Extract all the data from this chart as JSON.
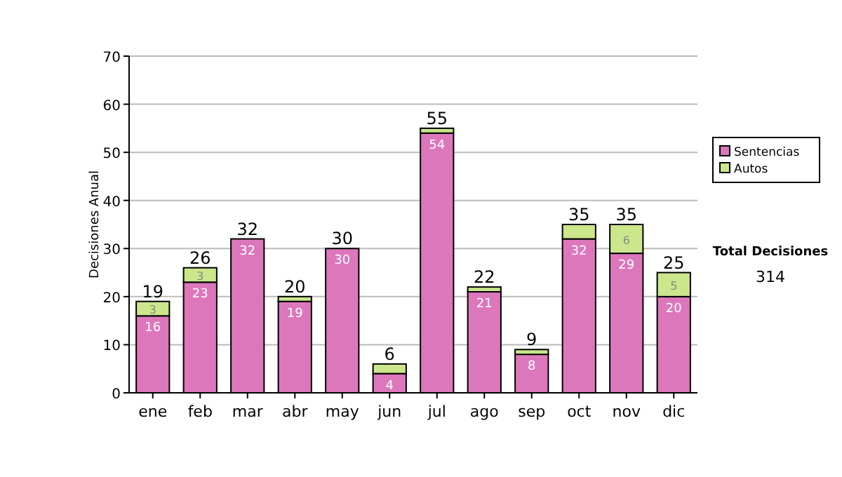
{
  "chart_data": {
    "type": "bar",
    "stacked": true,
    "ylabel": "Decisiones Anual",
    "categories": [
      "ene",
      "feb",
      "mar",
      "abr",
      "may",
      "jun",
      "jul",
      "ago",
      "sep",
      "oct",
      "nov",
      "dic"
    ],
    "series": [
      {
        "name": "Sentencias",
        "color": "#dd77bb",
        "values": [
          16,
          23,
          32,
          19,
          30,
          4,
          54,
          21,
          8,
          32,
          29,
          20
        ],
        "value_labels": [
          "16",
          "23",
          "32",
          "19",
          "30",
          "4",
          "54",
          "21",
          "8",
          "32",
          "29",
          "20"
        ]
      },
      {
        "name": "Autos",
        "color": "#cce68c",
        "values": [
          3,
          3,
          0,
          1,
          0,
          2,
          1,
          1,
          1,
          3,
          6,
          5
        ],
        "value_labels": [
          "3",
          "3",
          null,
          null,
          null,
          null,
          null,
          null,
          null,
          null,
          "6",
          "5"
        ]
      }
    ],
    "totals": [
      "19",
      "26",
      "32",
      "20",
      "30",
      "6",
      "55",
      "22",
      "9",
      "35",
      "35",
      "25"
    ],
    "ylim": [
      0,
      70
    ],
    "yticks": [
      0,
      10,
      20,
      30,
      40,
      50,
      60,
      70
    ],
    "grid": "y",
    "legend": "right",
    "annotations": [
      "Total Decisiones",
      "314"
    ]
  }
}
